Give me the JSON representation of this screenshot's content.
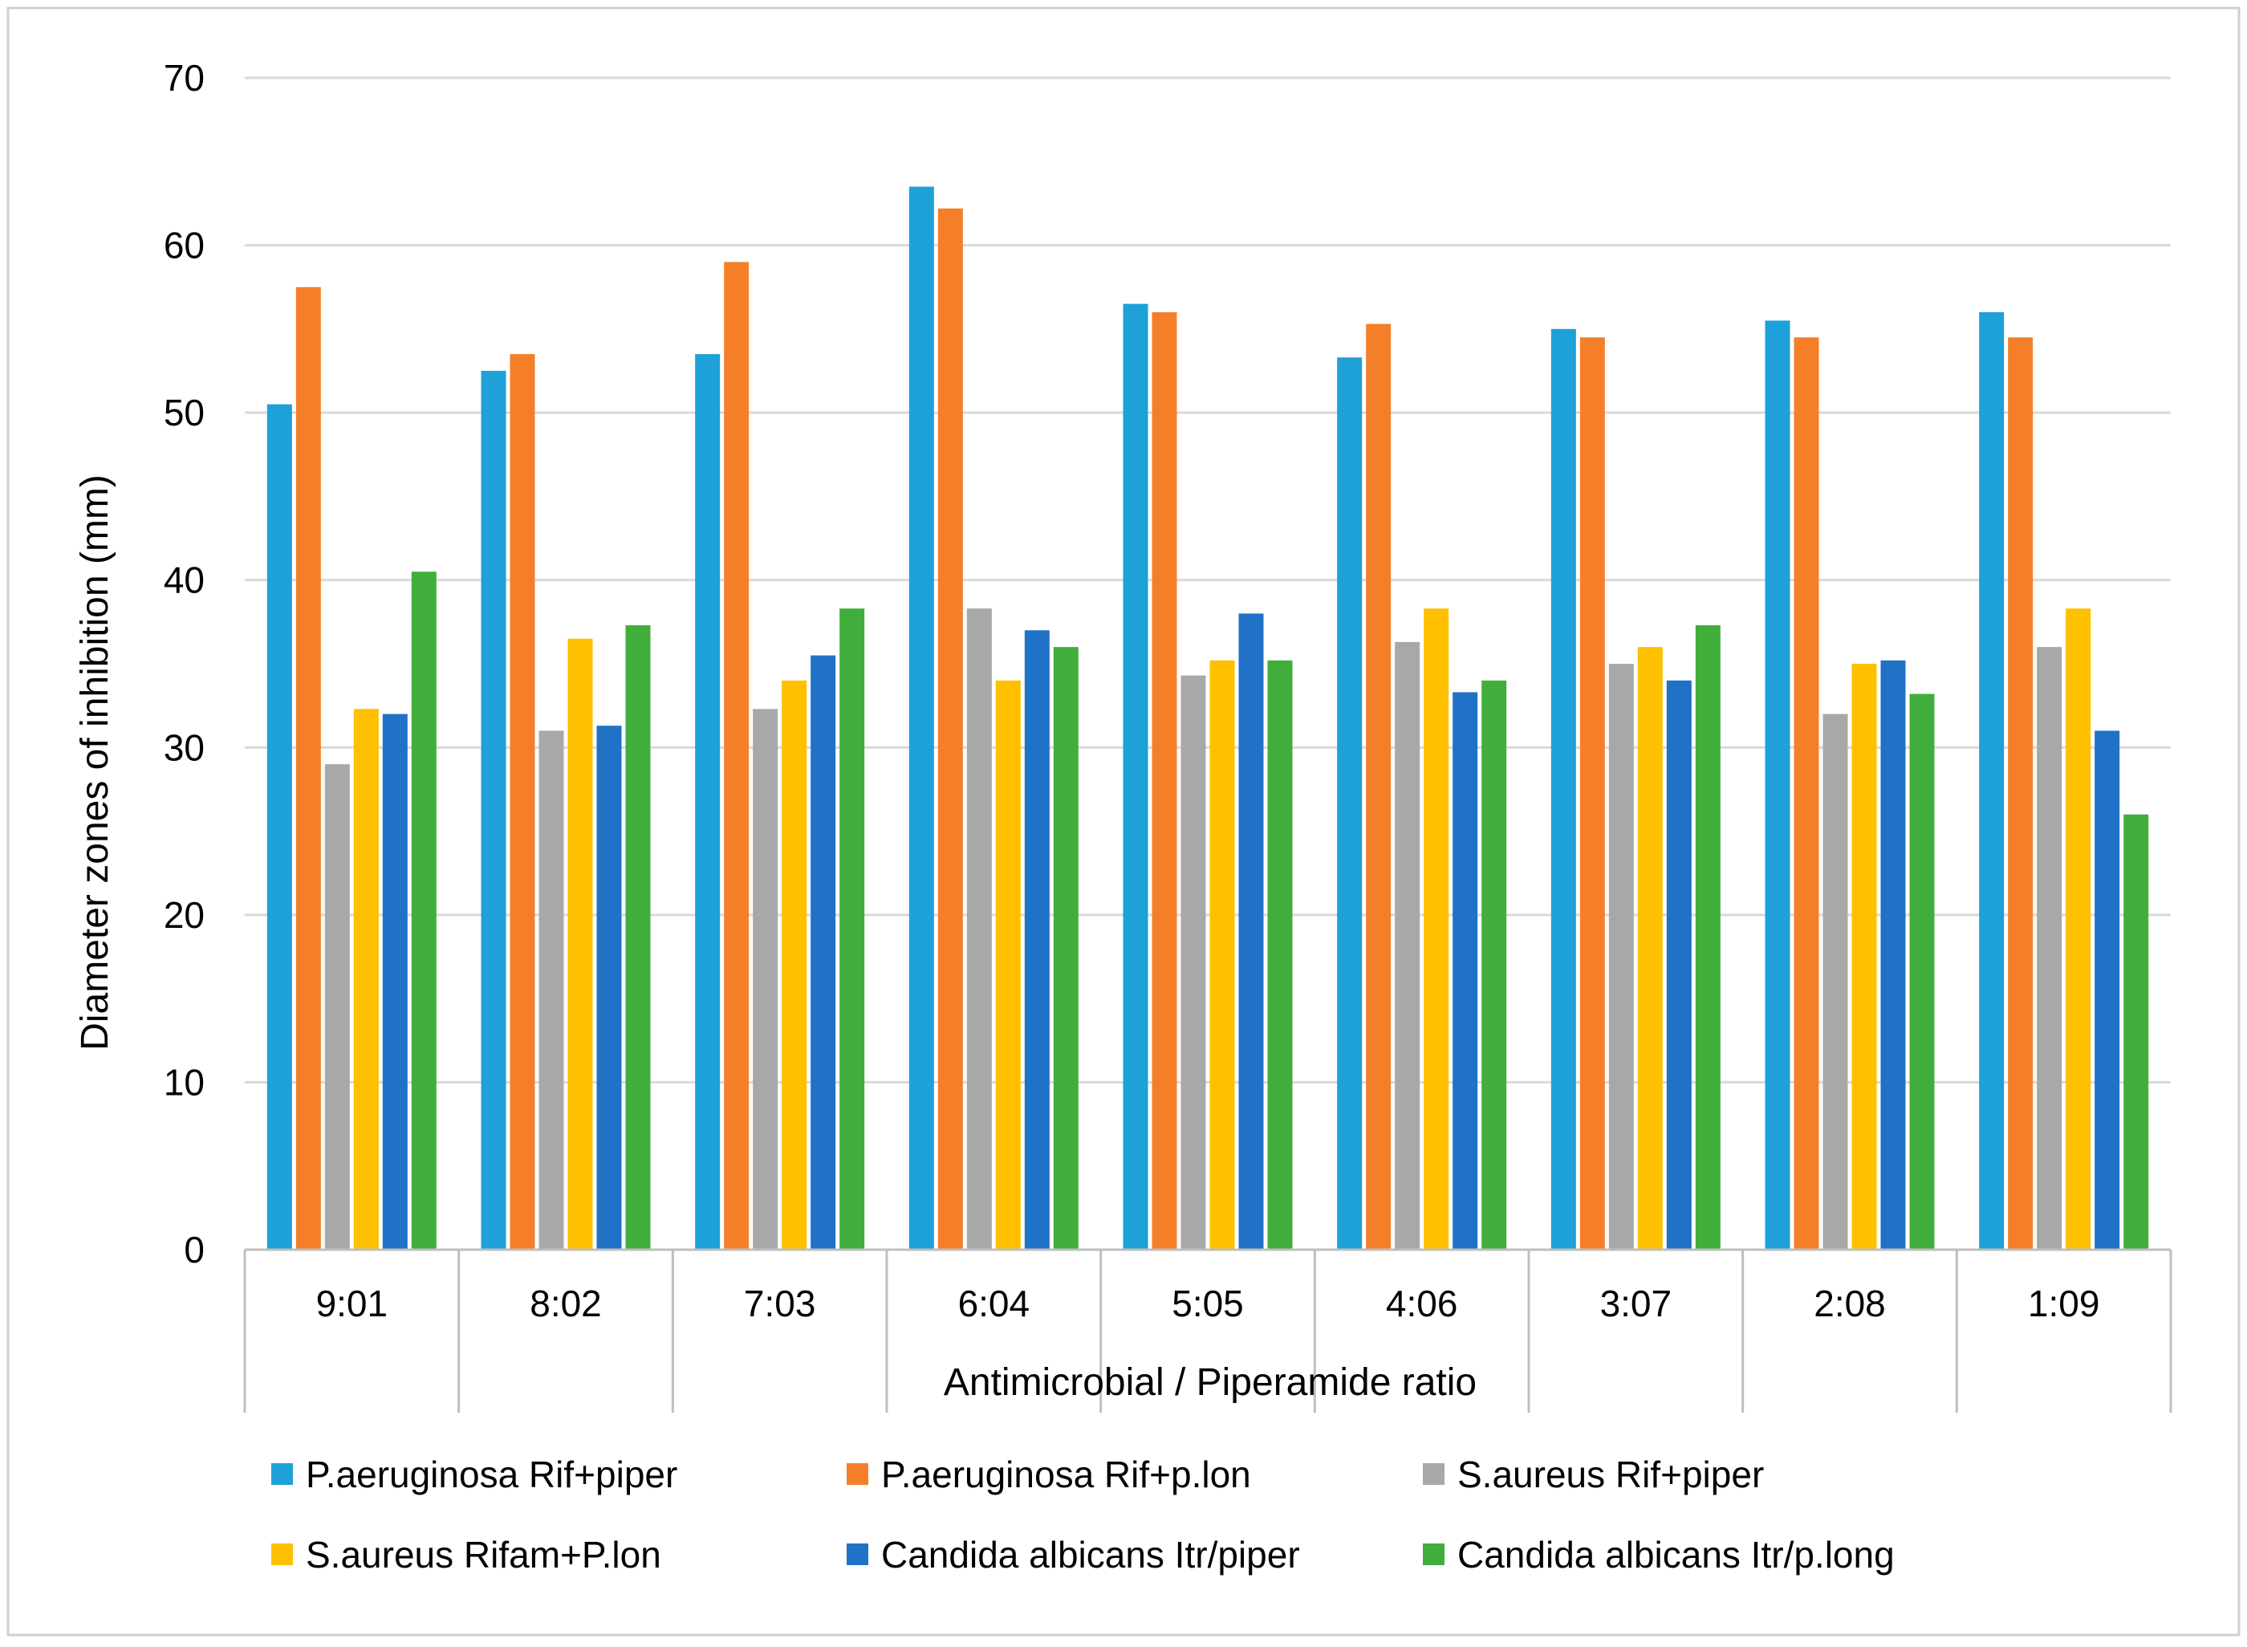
{
  "chart_data": {
    "type": "bar",
    "title": "",
    "xlabel": "Antimicrobial / Piperamide ratio",
    "ylabel": "Diameter zones of inhibition (mm)",
    "ylim": [
      0,
      70
    ],
    "yticks": [
      0,
      10,
      20,
      30,
      40,
      50,
      60,
      70
    ],
    "grid": true,
    "legend_position": "bottom",
    "categories": [
      "9:01",
      "8:02",
      "7:03",
      "6:04",
      "5:05",
      "4:06",
      "3:07",
      "2:08",
      "1:09"
    ],
    "series": [
      {
        "name": "P.aeruginosa Rif+piper",
        "color": "#1EA0D8",
        "values": [
          50.5,
          52.5,
          53.5,
          63.5,
          56.5,
          53.3,
          55.0,
          55.5,
          56.0
        ]
      },
      {
        "name": "P.aeruginosa Rif+p.lon",
        "color": "#F57F29",
        "values": [
          57.5,
          53.5,
          59.0,
          62.2,
          56.0,
          55.3,
          54.5,
          54.5,
          54.5
        ]
      },
      {
        "name": "S.aureus Rif+piper",
        "color": "#A8A8A8",
        "values": [
          29.0,
          31.0,
          32.3,
          38.3,
          34.3,
          36.3,
          35.0,
          32.0,
          36.0
        ]
      },
      {
        "name": "S.aureus Rifam+P.lon",
        "color": "#FFC000",
        "values": [
          32.3,
          36.5,
          34.0,
          34.0,
          35.2,
          38.3,
          36.0,
          35.0,
          38.3
        ]
      },
      {
        "name": "Candida albicans Itr/piper",
        "color": "#1F72C6",
        "values": [
          32.0,
          31.3,
          35.5,
          37.0,
          38.0,
          33.3,
          34.0,
          35.2,
          31.0
        ]
      },
      {
        "name": "Candida albicans Itr/p.long",
        "color": "#41AE3C",
        "values": [
          40.5,
          37.3,
          38.3,
          36.0,
          35.2,
          34.0,
          37.3,
          33.2,
          26.0
        ]
      }
    ]
  }
}
